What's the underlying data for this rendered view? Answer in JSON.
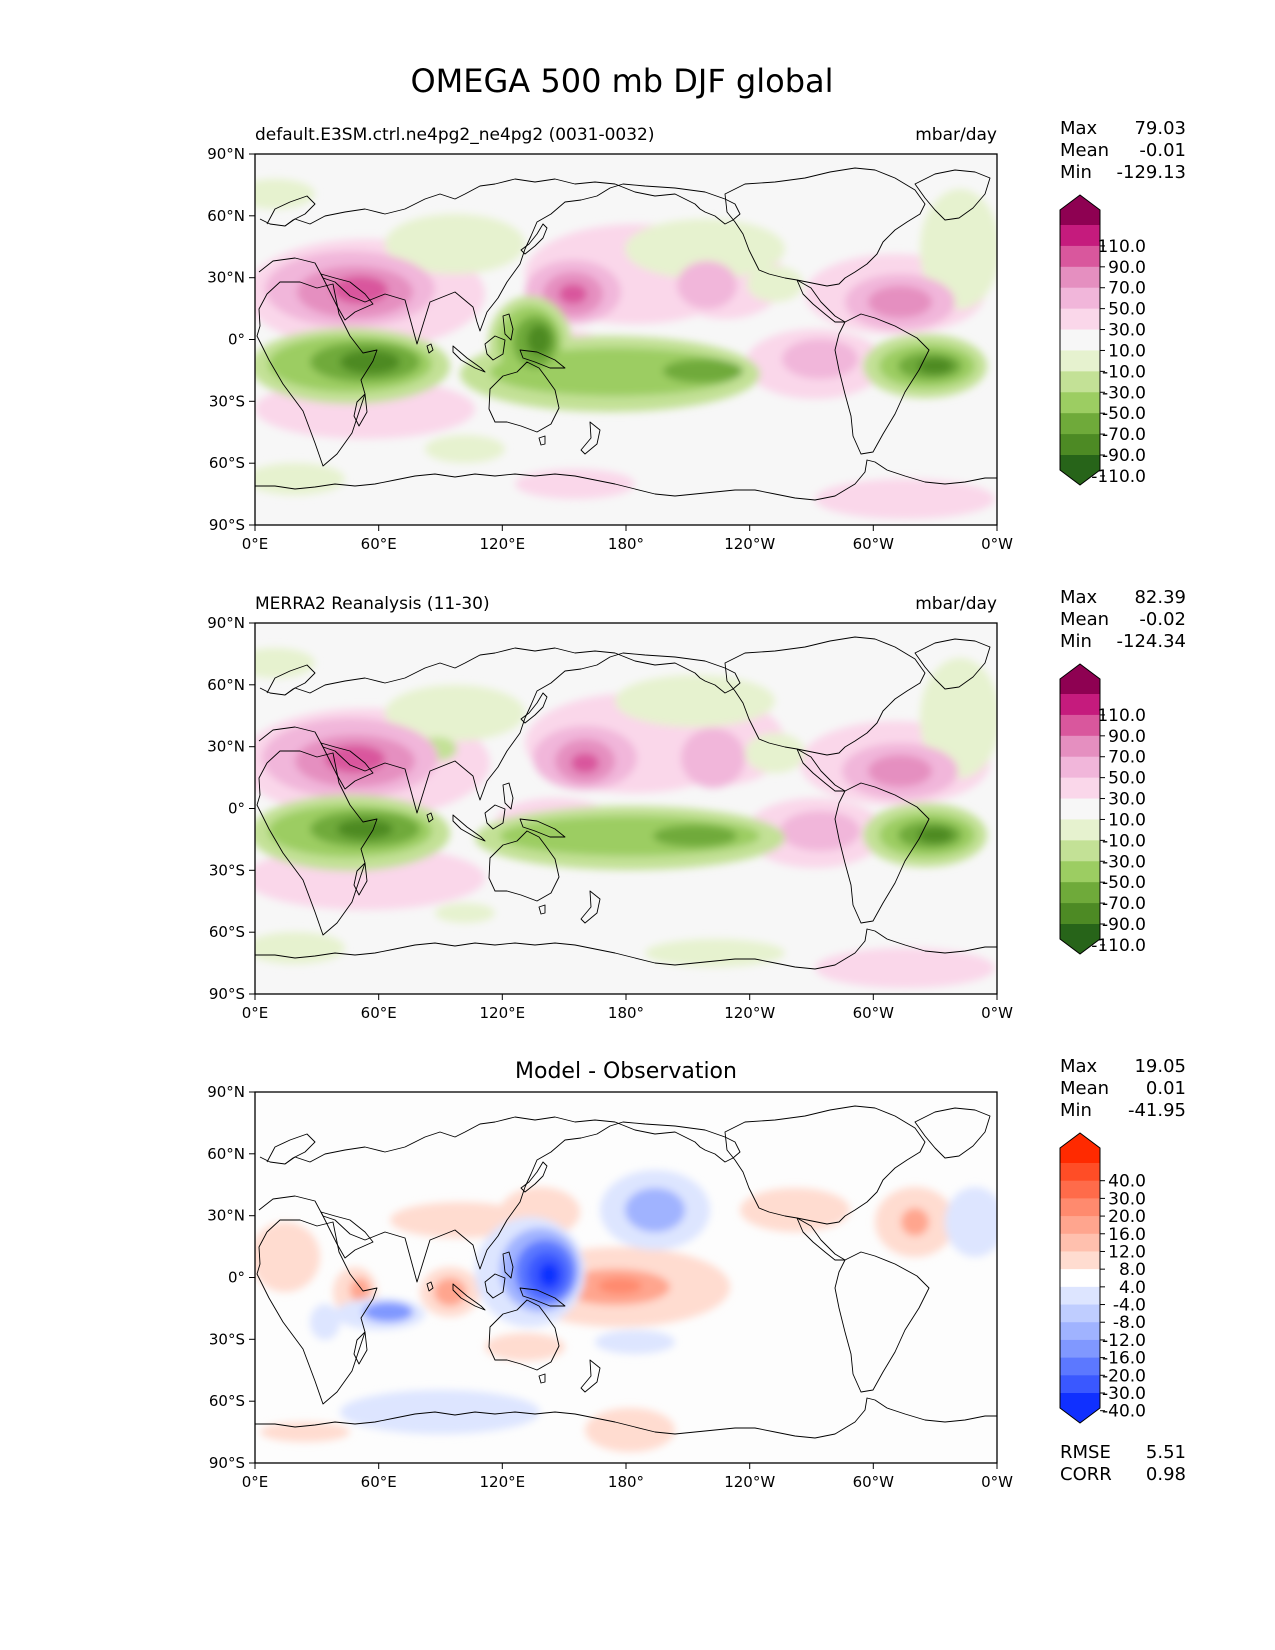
{
  "title": "OMEGA 500 mb DJF global",
  "axis_labels": {
    "lat": [
      "90°N",
      "60°N",
      "30°N",
      "0°",
      "30°S",
      "60°S",
      "90°S"
    ],
    "lon": [
      "0°E",
      "60°E",
      "120°E",
      "180°",
      "120°W",
      "60°W",
      "0°W"
    ]
  },
  "colors": {
    "coast": "#000000",
    "ocean_bg": "#f7f7f7",
    "diff_bg": "#fdfdfd"
  },
  "panels": [
    {
      "left_title": "default.E3SM.ctrl.ne4pg2_ne4pg2 (0031-0032)",
      "right_title": "mbar/day",
      "center_title": "",
      "stats": [
        [
          "Max",
          "79.03"
        ],
        [
          "Mean",
          "-0.01"
        ],
        [
          "Min",
          "-129.13"
        ]
      ],
      "extra_stats": [],
      "colorbar": {
        "levels": [
          "110.0",
          "90.0",
          "70.0",
          "50.0",
          "30.0",
          "10.0",
          "-10.0",
          "-30.0",
          "-50.0",
          "-70.0",
          "-90.0",
          "-110.0"
        ],
        "colors": [
          "#8e0152",
          "#c51b7d",
          "#d9579d",
          "#e58fc0",
          "#f1b6da",
          "#fad7ea",
          "#f7f7f7",
          "#e6f2cf",
          "#c3e196",
          "#9ccd62",
          "#6faa3a",
          "#4d8a24",
          "#276419"
        ]
      }
    },
    {
      "left_title": "MERRA2 Reanalysis (11-30)",
      "right_title": "mbar/day",
      "center_title": "",
      "stats": [
        [
          "Max",
          "82.39"
        ],
        [
          "Mean",
          "-0.02"
        ],
        [
          "Min",
          "-124.34"
        ]
      ],
      "extra_stats": [],
      "colorbar": {
        "levels": [
          "110.0",
          "90.0",
          "70.0",
          "50.0",
          "30.0",
          "10.0",
          "-10.0",
          "-30.0",
          "-50.0",
          "-70.0",
          "-90.0",
          "-110.0"
        ],
        "colors": [
          "#8e0152",
          "#c51b7d",
          "#d9579d",
          "#e58fc0",
          "#f1b6da",
          "#fad7ea",
          "#f7f7f7",
          "#e6f2cf",
          "#c3e196",
          "#9ccd62",
          "#6faa3a",
          "#4d8a24",
          "#276419"
        ]
      }
    },
    {
      "left_title": "",
      "right_title": "",
      "center_title": "Model - Observation",
      "stats": [
        [
          "Max",
          "19.05"
        ],
        [
          "Mean",
          "0.01"
        ],
        [
          "Min",
          "-41.95"
        ]
      ],
      "extra_stats": [
        [
          "RMSE",
          "5.51"
        ],
        [
          "CORR",
          "0.98"
        ]
      ],
      "colorbar": {
        "levels": [
          "40.0",
          "30.0",
          "20.0",
          "16.0",
          "12.0",
          "8.0",
          "4.0",
          "-4.0",
          "-8.0",
          "-12.0",
          "-16.0",
          "-20.0",
          "-30.0",
          "-40.0"
        ],
        "colors": [
          "#ff2a00",
          "#ff4d26",
          "#ff6b4a",
          "#ff8a6e",
          "#ffa58e",
          "#ffc0ae",
          "#ffdcd0",
          "#ffffff",
          "#dde5ff",
          "#bfcdff",
          "#a0b3ff",
          "#8098ff",
          "#5c78ff",
          "#3a58ff",
          "#1030ff"
        ]
      }
    }
  ],
  "chart_data": [
    {
      "type": "heatmap",
      "title": "default.E3SM.ctrl.ne4pg2_ne4pg2 (0031-0032)",
      "units": "mbar/day",
      "x_range": [
        0,
        360
      ],
      "y_range": [
        -90,
        90
      ],
      "features": [
        {
          "lon": 60,
          "lat": 22,
          "value": 50
        },
        {
          "lon": 55,
          "lat": 25,
          "value": 70
        },
        {
          "lon": 165,
          "lat": 22,
          "value": 50
        },
        {
          "lon": 215,
          "lat": 25,
          "value": 40
        },
        {
          "lon": 305,
          "lat": 18,
          "value": 50
        },
        {
          "lon": 270,
          "lat": -10,
          "value": 30
        },
        {
          "lon": 55,
          "lat": -12,
          "value": -110
        },
        {
          "lon": 30,
          "lat": -12,
          "value": -90
        },
        {
          "lon": 135,
          "lat": -5,
          "value": -110
        },
        {
          "lon": 200,
          "lat": -12,
          "value": -100
        },
        {
          "lon": 322,
          "lat": -13,
          "value": -120
        }
      ]
    },
    {
      "type": "heatmap",
      "title": "MERRA2 Reanalysis (11-30)",
      "units": "mbar/day",
      "x_range": [
        0,
        360
      ],
      "y_range": [
        -90,
        90
      ],
      "features": [
        {
          "lon": 50,
          "lat": 22,
          "value": 70
        },
        {
          "lon": 60,
          "lat": 20,
          "value": 50
        },
        {
          "lon": 162,
          "lat": 18,
          "value": 50
        },
        {
          "lon": 218,
          "lat": 22,
          "value": 40
        },
        {
          "lon": 312,
          "lat": 16,
          "value": 50
        },
        {
          "lon": 270,
          "lat": -10,
          "value": 30
        },
        {
          "lon": 55,
          "lat": -12,
          "value": -110
        },
        {
          "lon": 30,
          "lat": -12,
          "value": -90
        },
        {
          "lon": 138,
          "lat": -3,
          "value": -70
        },
        {
          "lon": 200,
          "lat": -12,
          "value": -100
        },
        {
          "lon": 322,
          "lat": -13,
          "value": -120
        }
      ]
    },
    {
      "type": "heatmap",
      "title": "Model - Observation",
      "units": "mbar/day",
      "x_range": [
        0,
        360
      ],
      "y_range": [
        -90,
        90
      ],
      "features": [
        {
          "lon": 140,
          "lat": 3,
          "value": -40
        },
        {
          "lon": 130,
          "lat": -3,
          "value": -30
        },
        {
          "lon": 192,
          "lat": 22,
          "value": -16
        },
        {
          "lon": 67,
          "lat": -10,
          "value": -16
        },
        {
          "lon": 180,
          "lat": -5,
          "value": 16
        },
        {
          "lon": 95,
          "lat": -8,
          "value": 12
        },
        {
          "lon": 52,
          "lat": -3,
          "value": 8
        },
        {
          "lon": 115,
          "lat": 20,
          "value": 8
        },
        {
          "lon": 322,
          "lat": 20,
          "value": 12
        },
        {
          "lon": 262,
          "lat": 25,
          "value": 8
        },
        {
          "lon": 350,
          "lat": 15,
          "value": -8
        },
        {
          "lon": 155,
          "lat": -55,
          "value": 8
        },
        {
          "lon": 100,
          "lat": -60,
          "value": -8
        }
      ]
    }
  ]
}
